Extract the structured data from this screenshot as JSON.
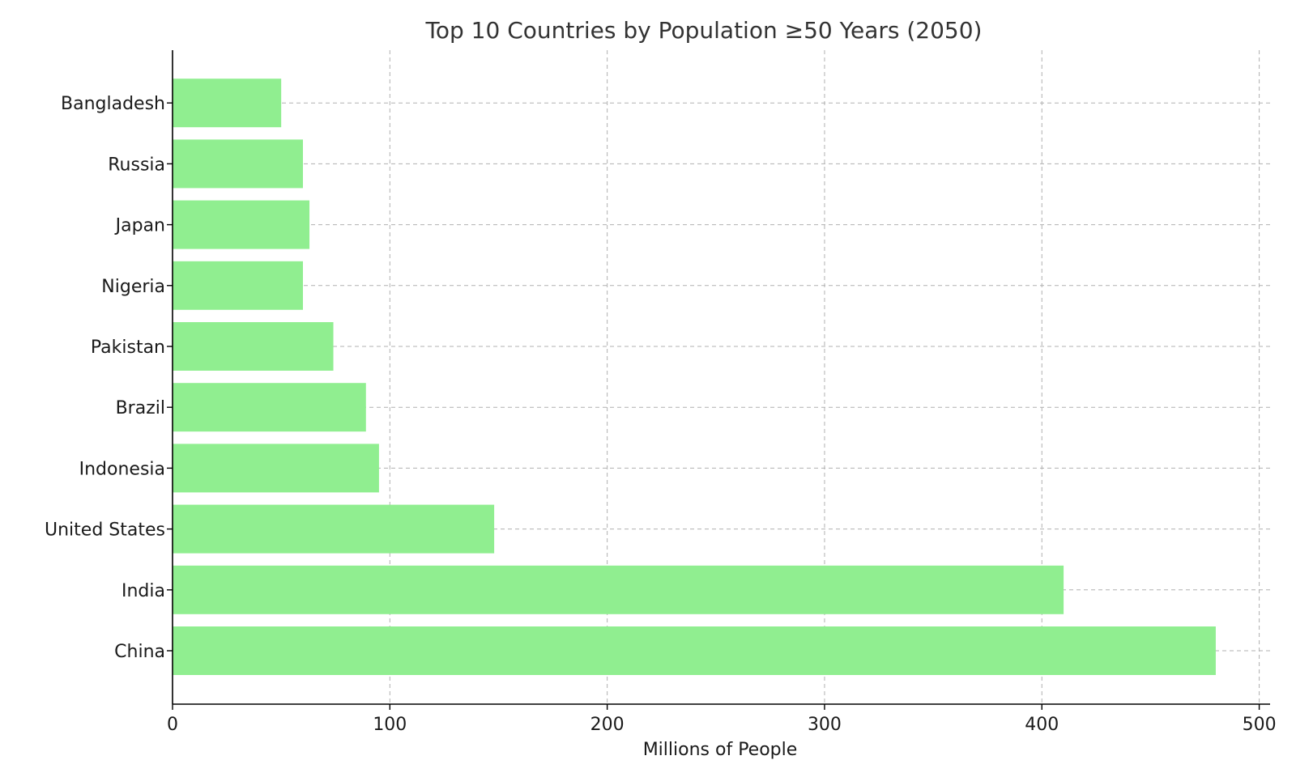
{
  "chart_data": {
    "type": "bar",
    "orientation": "horizontal",
    "title": "Top 10 Countries by Population ≥50 Years (2050)",
    "xlabel": "Millions of People",
    "ylabel": "",
    "categories": [
      "China",
      "India",
      "United States",
      "Indonesia",
      "Brazil",
      "Pakistan",
      "Nigeria",
      "Japan",
      "Russia",
      "Bangladesh"
    ],
    "values": [
      480,
      410,
      148,
      95,
      89,
      74,
      60,
      63,
      60,
      50
    ],
    "xlim": [
      0,
      505
    ],
    "xticks": [
      0,
      100,
      200,
      300,
      400,
      500
    ],
    "xtick_labels": [
      "0",
      "100",
      "200",
      "300",
      "400",
      "500"
    ],
    "bar_color": "#90ee90",
    "grid": true,
    "legend": "none"
  }
}
